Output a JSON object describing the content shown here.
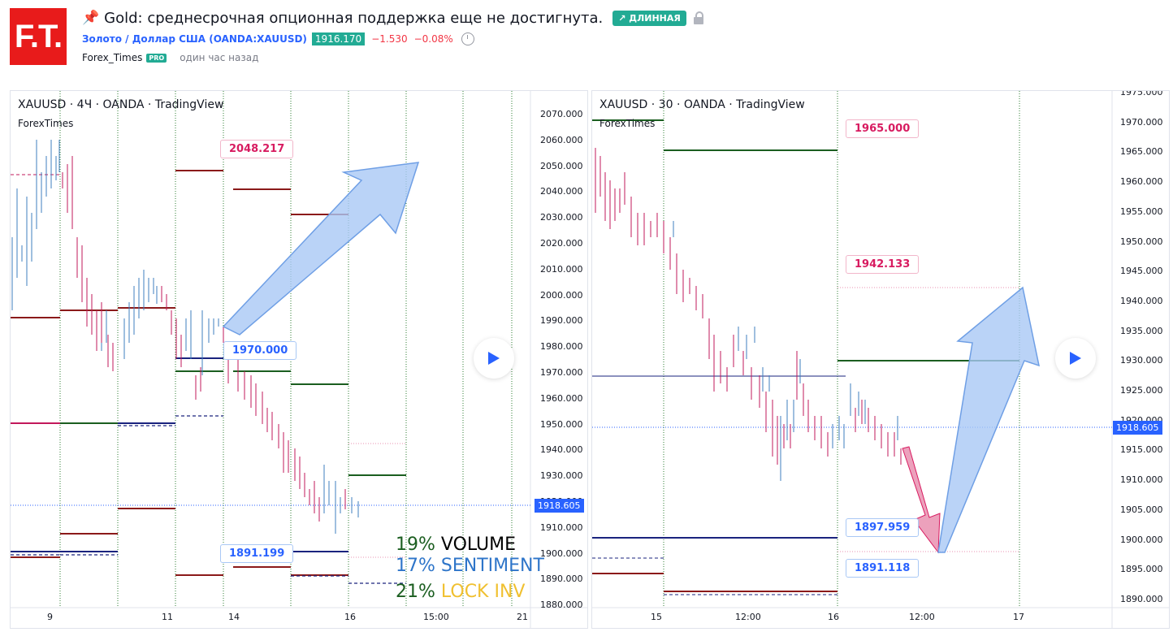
{
  "header": {
    "logo_text": "F.T.",
    "title": "Gold: среднесрочная опционная поддержка еще не достигнута.",
    "badge": "↗ ДЛИННАЯ",
    "symbol_link": "Золото / Доллар США (OANDA:XAUUSD)",
    "price": "1916.170",
    "change": "−1.530",
    "change_pct": "−0.08%",
    "author": "Forex_Times",
    "author_badge": "PRO",
    "posted": "один час назад"
  },
  "colors": {
    "accent": "#2962ff",
    "up": "#22ab94",
    "down": "#f23645",
    "brand": "#e81b1b"
  },
  "chart_left": {
    "label": "XAUUSD · 4Ч · OANDA · TradingView",
    "sublabel": "ForexTimes",
    "y_ticks": [
      "2070.000",
      "2060.000",
      "2050.000",
      "2040.000",
      "2030.000",
      "2020.000",
      "2010.000",
      "2000.000",
      "1990.000",
      "1980.000",
      "1970.000",
      "1960.000",
      "1950.000",
      "1940.000",
      "1930.000",
      "1920.000",
      "1910.000",
      "1900.000",
      "1890.000",
      "1880.000"
    ],
    "x_ticks": [
      "9",
      "11",
      "14",
      "16",
      "15:00",
      "21"
    ],
    "last_price": "1918.605",
    "callouts": {
      "top": "2048.217",
      "mid": "1970.000",
      "low": "1891.199"
    },
    "stats": [
      {
        "pct": "19%",
        "label": "VOLUME"
      },
      {
        "pct": "17%",
        "label": "SENTIMENT"
      },
      {
        "pct": "21%",
        "label": "LOCK INV"
      }
    ]
  },
  "chart_right": {
    "label": "XAUUSD · 30 · OANDA · TradingView",
    "sublabel": "ForexTimes",
    "y_ticks": [
      "1975.000",
      "1970.000",
      "1965.000",
      "1960.000",
      "1955.000",
      "1950.000",
      "1945.000",
      "1940.000",
      "1935.000",
      "1930.000",
      "1925.000",
      "1920.000",
      "1915.000",
      "1910.000",
      "1905.000",
      "1900.000",
      "1895.000",
      "1890.000"
    ],
    "x_ticks": [
      "15",
      "12:00",
      "16",
      "12:00",
      "17"
    ],
    "last_price": "1918.605",
    "callouts": {
      "c1": "1965.000",
      "c2": "1942.133",
      "c3": "1897.959",
      "c4": "1891.118"
    }
  }
}
